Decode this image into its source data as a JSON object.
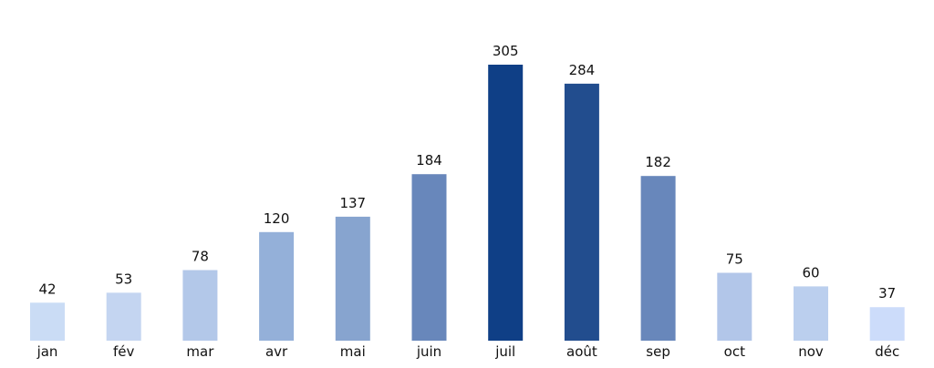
{
  "chart_data": {
    "type": "bar",
    "categories": [
      "jan",
      "fév",
      "mar",
      "avr",
      "mai",
      "juin",
      "juil",
      "août",
      "sep",
      "oct",
      "nov",
      "déc"
    ],
    "values": [
      42,
      53,
      78,
      120,
      137,
      184,
      305,
      284,
      182,
      75,
      60,
      37
    ],
    "data_labels": [
      "42",
      "53",
      "78",
      "120",
      "137",
      "184",
      "305",
      "284",
      "182",
      "75",
      "60",
      "37"
    ],
    "bar_colors": [
      "#cadcf5",
      "#c4d5f1",
      "#b3c8e9",
      "#94b0d9",
      "#87a4cf",
      "#6887bb",
      "#0f3f86",
      "#224d8e",
      "#6887bb",
      "#b2c6e9",
      "#bbcfee",
      "#ccdcfa"
    ],
    "title": "",
    "xlabel": "",
    "ylabel": "",
    "ylim": [
      0,
      305
    ],
    "grid": false,
    "legend": "none"
  }
}
